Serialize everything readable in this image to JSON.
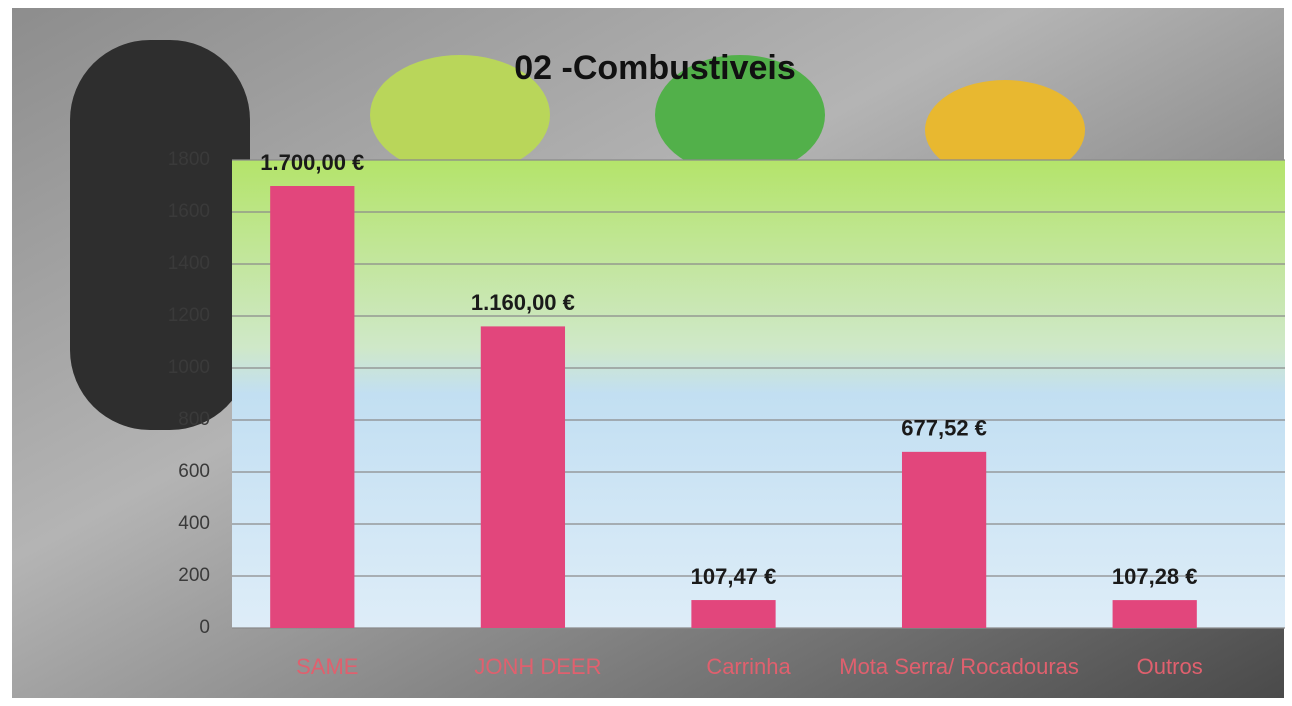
{
  "chart_data": {
    "type": "bar",
    "title": "02 -Combustiveis",
    "categories": [
      "SAME",
      "JONH DEER",
      "Carrinha",
      "Mota Serra/ Rocadouras",
      "Outros"
    ],
    "values": [
      1700,
      1160,
      107.47,
      677.52,
      107.28
    ],
    "value_labels": [
      "1.700,00 €",
      "1.160,00 €",
      "107,47 €",
      "677,52 €",
      "107,28 €"
    ],
    "color": "#e2467c",
    "ylim": [
      0,
      1800
    ],
    "yticks": [
      0,
      200,
      400,
      600,
      800,
      1000,
      1200,
      1400,
      1600,
      1800
    ],
    "grid": true
  }
}
